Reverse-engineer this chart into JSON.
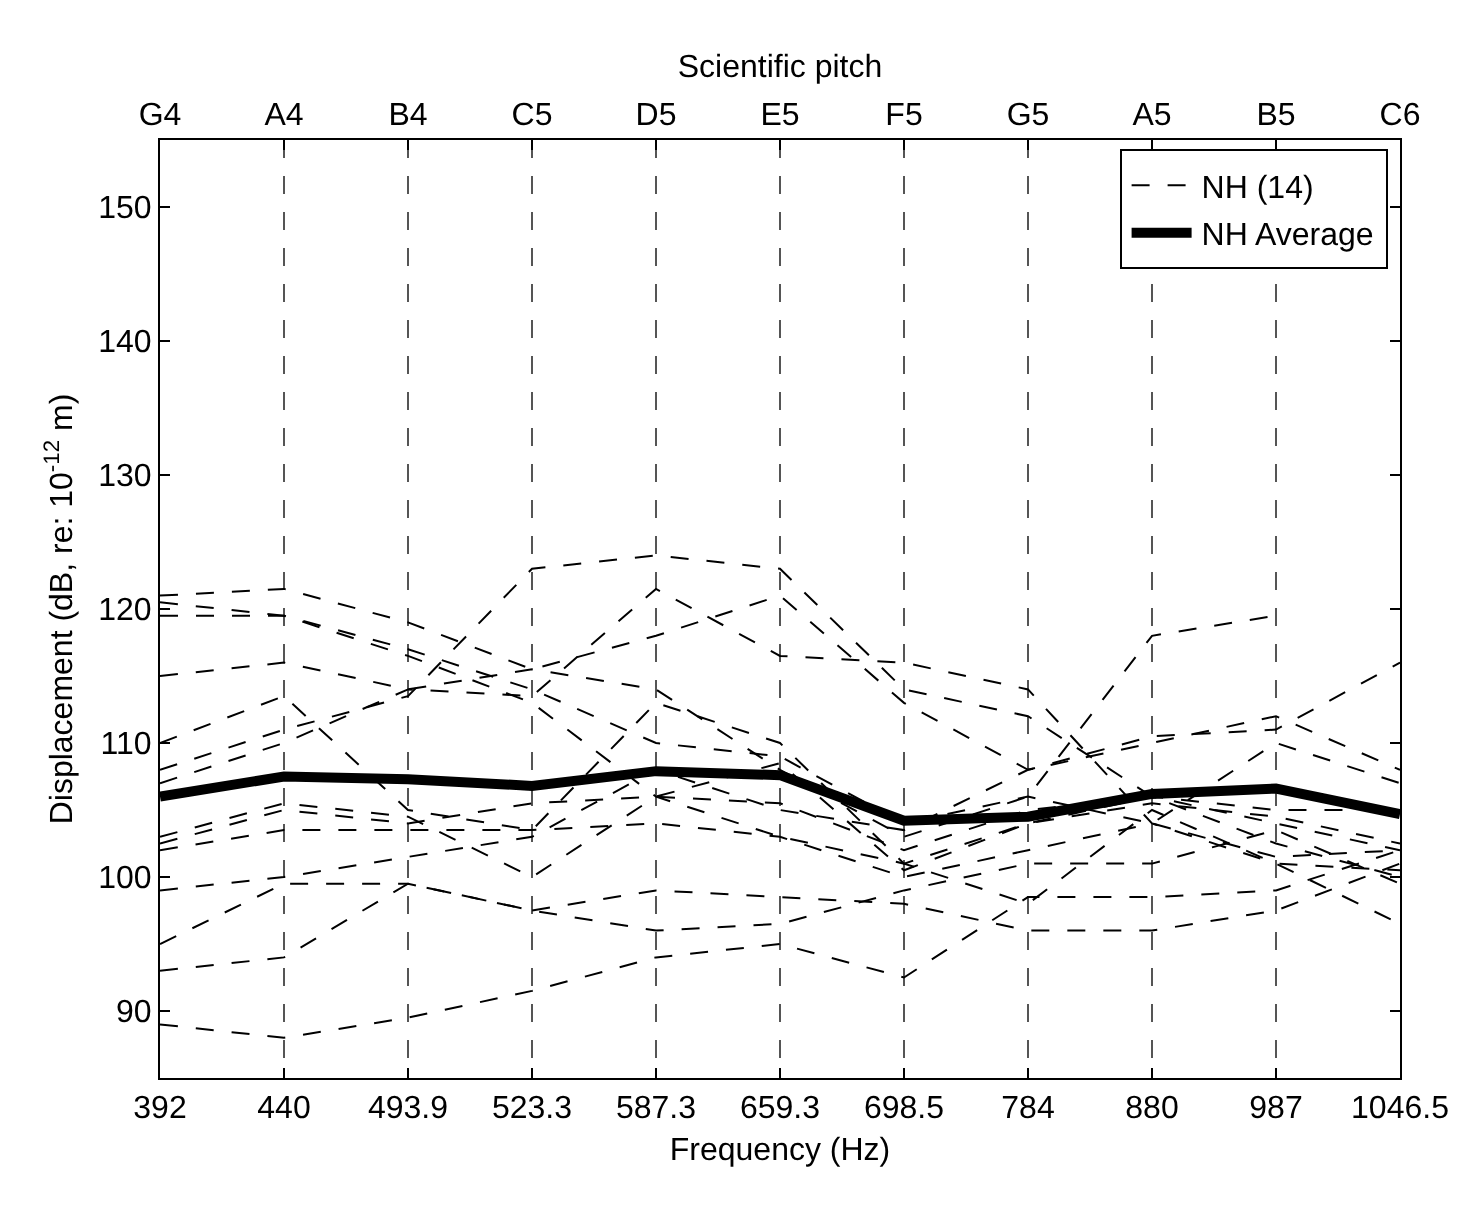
{
  "chart_data": {
    "type": "line",
    "xlabel": "Frequency (Hz)",
    "ylabel": "Displacement (dB, re: 10$^{-12}$ m)",
    "x2label": "Scientific pitch",
    "categories": [
      "392",
      "440",
      "493.9",
      "523.3",
      "587.3",
      "659.3",
      "698.5",
      "784",
      "880",
      "987",
      "1046.5"
    ],
    "annotations": [
      "G4",
      "A4",
      "B4",
      "C5",
      "D5",
      "E5",
      "F5",
      "G5",
      "A5",
      "B5",
      "C6"
    ],
    "ylim": [
      85,
      155
    ],
    "yticks": [
      90,
      100,
      110,
      120,
      130,
      140,
      150
    ],
    "grid": "x",
    "legend": "top right",
    "marker": "none",
    "series": [
      {
        "name": "NH (14)",
        "color": "#000000",
        "line_style": "dashed",
        "values": [
          121,
          121.5,
          119,
          115.5,
          118,
          121,
          113,
          108,
          110,
          112,
          108
        ]
      },
      {
        "color": "#000000",
        "line_style": "dashed",
        "values": [
          119.5,
          119.5,
          117,
          114,
          110,
          109,
          104,
          106,
          104,
          110,
          107
        ]
      },
      {
        "color": "#000000",
        "line_style": "dashed",
        "values": [
          120.5,
          119.5,
          116.5,
          113,
          106,
          103,
          101,
          104,
          106,
          104,
          102
        ]
      },
      {
        "color": "#000000",
        "line_style": "dashed",
        "values": [
          115,
          116,
          114,
          115.5,
          114,
          108,
          103,
          106,
          118,
          119.5,
          null
        ]
      },
      {
        "color": "#000000",
        "line_style": "dashed",
        "values": [
          110,
          113.5,
          105,
          103.5,
          113,
          110,
          101,
          98,
          105,
          101,
          100.5
        ]
      },
      {
        "color": "#000000",
        "line_style": "dashed",
        "values": [
          108,
          111,
          113.5,
          123,
          124,
          123,
          114,
          112,
          106,
          102.5,
          100
        ]
      },
      {
        "color": "#000000",
        "line_style": "dashed",
        "values": [
          107,
          110,
          114,
          113.5,
          121.5,
          116.5,
          116,
          114,
          104,
          101,
          96.5
        ]
      },
      {
        "color": "#000000",
        "line_style": "dashed",
        "values": [
          103,
          105.5,
          104.5,
          100,
          106,
          108.5,
          100.5,
          104,
          105.5,
          104.5,
          102.5
        ]
      },
      {
        "color": "#000000",
        "line_style": "dashed",
        "values": [
          102.5,
          105,
          104,
          105.5,
          106,
          105.5,
          102,
          105,
          106,
          105,
          105
        ]
      },
      {
        "color": "#000000",
        "line_style": "dashed",
        "values": [
          102,
          103.5,
          103.5,
          103.5,
          104,
          103,
          100,
          102,
          104,
          101.5,
          102
        ]
      },
      {
        "color": "#000000",
        "line_style": "dashed",
        "values": [
          99,
          100,
          101.5,
          103,
          108,
          105,
          103.5,
          108,
          110.5,
          111,
          116
        ]
      },
      {
        "color": "#000000",
        "line_style": "dashed",
        "values": [
          95,
          99.5,
          99.5,
          97.5,
          96,
          96.5,
          99,
          101,
          101,
          103.5,
          99.5
        ]
      },
      {
        "color": "#000000",
        "line_style": "dashed",
        "values": [
          93,
          94,
          99.5,
          97.5,
          99,
          98.5,
          98,
          96,
          96,
          97.5,
          101
        ]
      },
      {
        "color": "#000000",
        "line_style": "dashed",
        "values": [
          89,
          88,
          89.5,
          91.5,
          94,
          95,
          92.5,
          98.5,
          98.5,
          99,
          102
        ]
      },
      {
        "name": "NH Average",
        "color": "#000000",
        "line_style": "solid",
        "values": [
          106,
          107.5,
          107.3,
          106.8,
          107.9,
          107.6,
          104.2,
          104.5,
          106.2,
          106.6,
          104.7
        ]
      }
    ]
  }
}
